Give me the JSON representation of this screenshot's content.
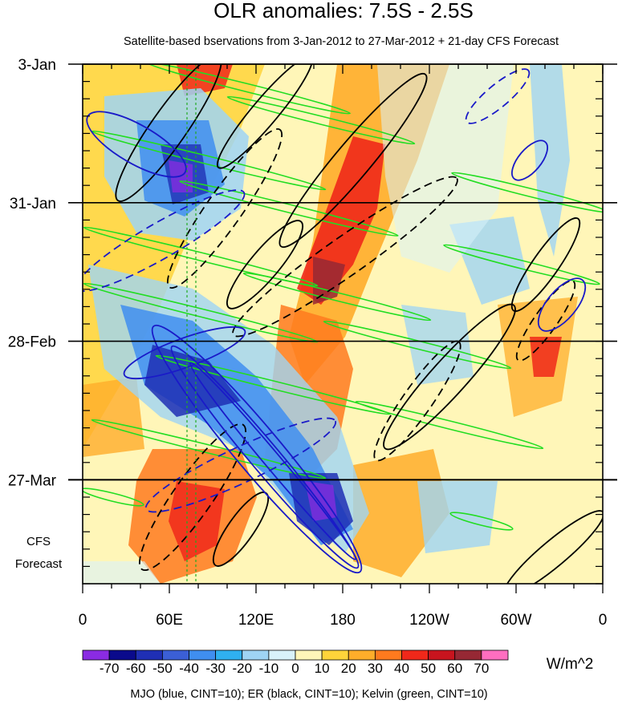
{
  "chart_data": {
    "type": "heatmap",
    "title": "OLR anomalies: 7.5S - 2.5S",
    "subtitle": "Satellite-based bservations from 3-Jan-2012 to 27-Mar-2012 + 21-day CFS Forecast",
    "x_ticks": [
      "0",
      "60E",
      "120E",
      "180",
      "120W",
      "60W",
      "0"
    ],
    "x_tick_values": [
      0,
      60,
      120,
      180,
      240,
      300,
      360
    ],
    "xlim": [
      0,
      360
    ],
    "y_ticks": [
      "3-Jan",
      "31-Jan",
      "28-Feb",
      "27-Mar"
    ],
    "y_tick_days": [
      0,
      28,
      56,
      84
    ],
    "ylim_days": [
      0,
      105
    ],
    "forecast_label": [
      "CFS",
      "Forecast"
    ],
    "colorbar": {
      "labels": [
        "-70",
        "-60",
        "-50",
        "-40",
        "-30",
        "-20",
        "-10",
        "0",
        "10",
        "20",
        "30",
        "40",
        "50",
        "60",
        "70"
      ],
      "colors": [
        "#8a2be2",
        "#0a0a8c",
        "#1f2fb4",
        "#3b5fd6",
        "#3f8ef0",
        "#2fb0f0",
        "#9fd4f4",
        "#d8f2fa",
        "#fff6b8",
        "#ffd43a",
        "#ffad2a",
        "#ff7a1e",
        "#f0281a",
        "#c8141e",
        "#962834",
        "#ff6ec0"
      ],
      "units": "W/m^2"
    },
    "footer": "MJO (blue, CINT=10); ER (black, CINT=10); Kelvin (green, CINT=10)"
  }
}
